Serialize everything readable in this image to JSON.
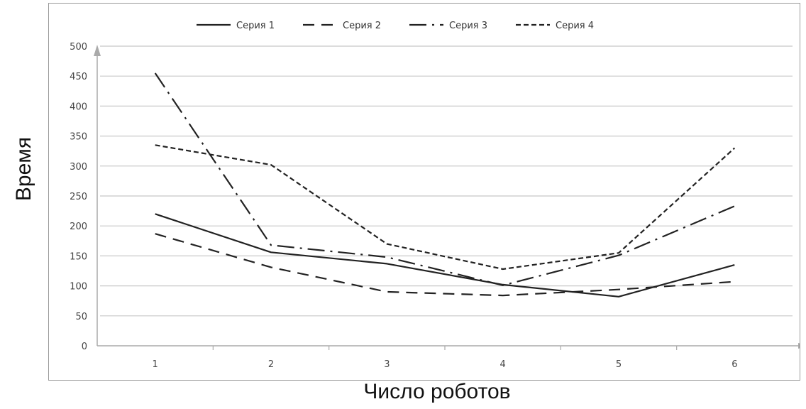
{
  "chart_data": {
    "type": "line",
    "title": "",
    "xlabel": "Число роботов",
    "ylabel": "Время",
    "x": [
      1,
      2,
      3,
      4,
      5,
      6
    ],
    "ylim": [
      0,
      500
    ],
    "yticks": [
      0,
      50,
      100,
      150,
      200,
      250,
      300,
      350,
      400,
      450,
      500
    ],
    "grid": true,
    "legend_position": "top",
    "series": [
      {
        "name": "Серия 1",
        "values": [
          220,
          156,
          137,
          102,
          82,
          135
        ],
        "dash": "solid",
        "color": "#222222"
      },
      {
        "name": "Серия 2",
        "values": [
          187,
          131,
          90,
          84,
          94,
          107
        ],
        "dash": "dashed",
        "color": "#222222"
      },
      {
        "name": "Серия 3",
        "values": [
          455,
          168,
          148,
          101,
          151,
          233
        ],
        "dash": "dash-dot",
        "color": "#222222"
      },
      {
        "name": "Серия 4",
        "values": [
          335,
          302,
          170,
          128,
          155,
          330
        ],
        "dash": "short-dash",
        "color": "#222222"
      }
    ]
  }
}
